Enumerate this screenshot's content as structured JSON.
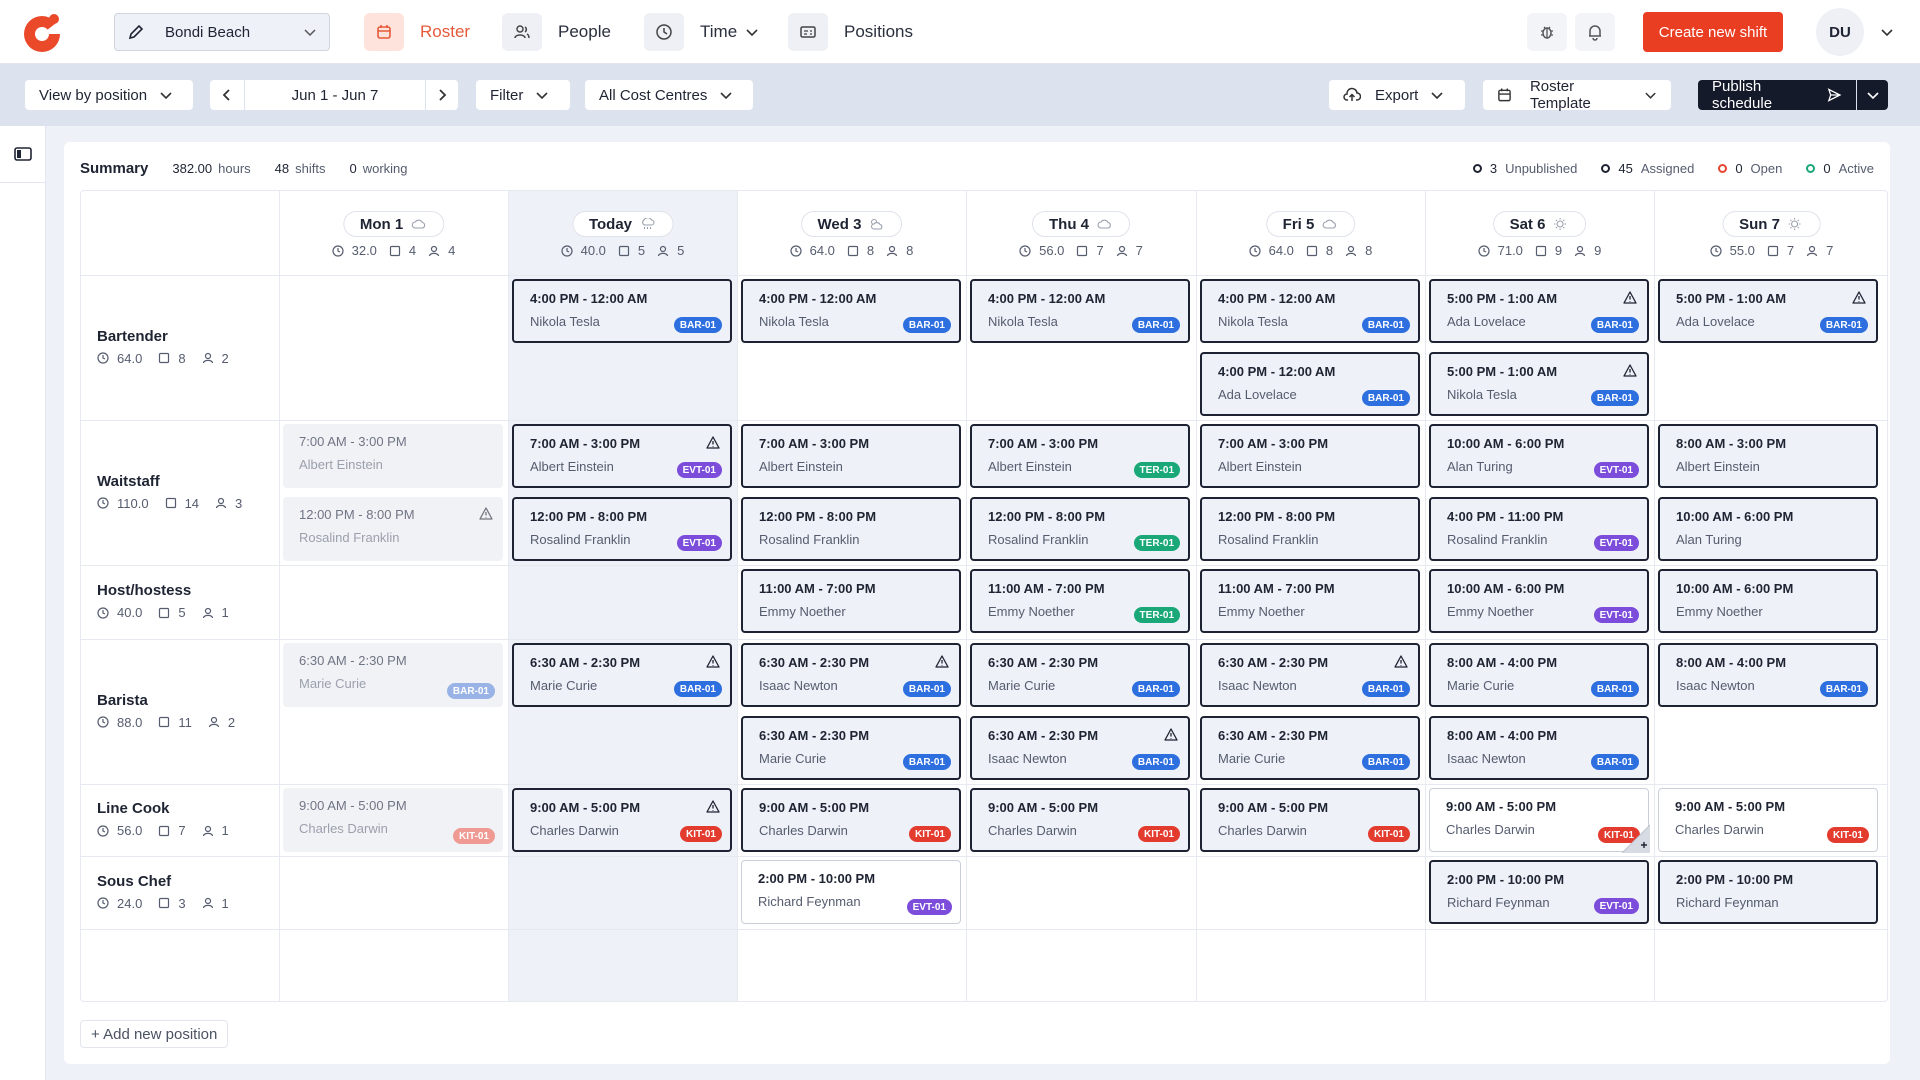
{
  "nav": {
    "location": "Bondi Beach",
    "roster": "Roster",
    "people": "People",
    "time": "Time",
    "positions": "Positions",
    "create_shift": "Create new shift",
    "user_initials": "DU"
  },
  "toolbar": {
    "view_by": "View by position",
    "date_range": "Jun 1 - Jun 7",
    "filter": "Filter",
    "cost_centres": "All Cost Centres",
    "export": "Export",
    "roster_template": "Roster Template",
    "publish": "Publish schedule"
  },
  "summary": {
    "title": "Summary",
    "hours": "382.00",
    "hours_unit": "hours",
    "shifts": "48",
    "shifts_unit": "shifts",
    "working": "0",
    "working_unit": "working"
  },
  "legend": [
    {
      "count": "3",
      "label": "Unpublished",
      "color": "#1f2433"
    },
    {
      "count": "45",
      "label": "Assigned",
      "color": "#1f2433"
    },
    {
      "count": "0",
      "label": "Open",
      "color": "#e8452e"
    },
    {
      "count": "0",
      "label": "Active",
      "color": "#1aa878"
    }
  ],
  "days": [
    {
      "label": "Mon 1",
      "hours": "32.0",
      "shifts": "4",
      "people": "4",
      "weather": "cloud-icon"
    },
    {
      "label": "Today",
      "hours": "40.0",
      "shifts": "5",
      "people": "5",
      "weather": "rain-icon"
    },
    {
      "label": "Wed 3",
      "hours": "64.0",
      "shifts": "8",
      "people": "8",
      "weather": "partly-cloudy-icon"
    },
    {
      "label": "Thu 4",
      "hours": "56.0",
      "shifts": "7",
      "people": "7",
      "weather": "cloud-icon"
    },
    {
      "label": "Fri 5",
      "hours": "64.0",
      "shifts": "8",
      "people": "8",
      "weather": "cloud-icon"
    },
    {
      "label": "Sat 6",
      "hours": "71.0",
      "shifts": "9",
      "people": "9",
      "weather": "sun-icon"
    },
    {
      "label": "Sun 7",
      "hours": "55.0",
      "shifts": "7",
      "people": "7",
      "weather": "sun-icon"
    }
  ],
  "positions": [
    {
      "name": "Bartender",
      "hours": "64.0",
      "shifts": "8",
      "people": "2",
      "shifts_list": [
        {
          "day": 1,
          "slot": 0,
          "time": "4:00 PM - 12:00 AM",
          "name": "Nikola Tesla",
          "tag": "BAR-01",
          "tagType": "bar"
        },
        {
          "day": 2,
          "slot": 0,
          "time": "4:00 PM - 12:00 AM",
          "name": "Nikola Tesla",
          "tag": "BAR-01",
          "tagType": "bar"
        },
        {
          "day": 3,
          "slot": 0,
          "time": "4:00 PM - 12:00 AM",
          "name": "Nikola Tesla",
          "tag": "BAR-01",
          "tagType": "bar"
        },
        {
          "day": 4,
          "slot": 0,
          "time": "4:00 PM - 12:00 AM",
          "name": "Nikola Tesla",
          "tag": "BAR-01",
          "tagType": "bar"
        },
        {
          "day": 4,
          "slot": 1,
          "time": "4:00 PM - 12:00 AM",
          "name": "Ada Lovelace",
          "tag": "BAR-01",
          "tagType": "bar"
        },
        {
          "day": 5,
          "slot": 0,
          "time": "5:00 PM - 1:00 AM",
          "name": "Ada Lovelace",
          "tag": "BAR-01",
          "tagType": "bar",
          "warn": true
        },
        {
          "day": 5,
          "slot": 1,
          "time": "5:00 PM - 1:00 AM",
          "name": "Nikola Tesla",
          "tag": "BAR-01",
          "tagType": "bar",
          "warn": true
        },
        {
          "day": 6,
          "slot": 0,
          "time": "5:00 PM - 1:00 AM",
          "name": "Ada Lovelace",
          "tag": "BAR-01",
          "tagType": "bar",
          "warn": true
        }
      ]
    },
    {
      "name": "Waitstaff",
      "hours": "110.0",
      "shifts": "14",
      "people": "3",
      "shifts_list": [
        {
          "day": 0,
          "slot": 0,
          "time": "7:00 AM - 3:00 PM",
          "name": "Albert Einstein",
          "past": true
        },
        {
          "day": 0,
          "slot": 1,
          "time": "12:00 PM - 8:00 PM",
          "name": "Rosalind Franklin",
          "past": true,
          "warn": true
        },
        {
          "day": 1,
          "slot": 0,
          "time": "7:00 AM - 3:00 PM",
          "name": "Albert Einstein",
          "tag": "EVT-01",
          "tagType": "evt",
          "warn": true
        },
        {
          "day": 1,
          "slot": 1,
          "time": "12:00 PM - 8:00 PM",
          "name": "Rosalind Franklin",
          "tag": "EVT-01",
          "tagType": "evt"
        },
        {
          "day": 2,
          "slot": 0,
          "time": "7:00 AM - 3:00 PM",
          "name": "Albert Einstein"
        },
        {
          "day": 2,
          "slot": 1,
          "time": "12:00 PM - 8:00 PM",
          "name": "Rosalind Franklin"
        },
        {
          "day": 3,
          "slot": 0,
          "time": "7:00 AM - 3:00 PM",
          "name": "Albert Einstein",
          "tag": "TER-01",
          "tagType": "ter"
        },
        {
          "day": 3,
          "slot": 1,
          "time": "12:00 PM - 8:00 PM",
          "name": "Rosalind Franklin",
          "tag": "TER-01",
          "tagType": "ter"
        },
        {
          "day": 4,
          "slot": 0,
          "time": "7:00 AM - 3:00 PM",
          "name": "Albert Einstein"
        },
        {
          "day": 4,
          "slot": 1,
          "time": "12:00 PM - 8:00 PM",
          "name": "Rosalind Franklin"
        },
        {
          "day": 5,
          "slot": 0,
          "time": "10:00 AM - 6:00 PM",
          "name": "Alan Turing",
          "tag": "EVT-01",
          "tagType": "evt"
        },
        {
          "day": 5,
          "slot": 1,
          "time": "4:00 PM - 11:00 PM",
          "name": "Rosalind Franklin",
          "tag": "EVT-01",
          "tagType": "evt"
        },
        {
          "day": 6,
          "slot": 0,
          "time": "8:00 AM - 3:00 PM",
          "name": "Albert Einstein"
        },
        {
          "day": 6,
          "slot": 1,
          "time": "10:00 AM - 6:00 PM",
          "name": "Alan Turing"
        }
      ]
    },
    {
      "name": "Host/hostess",
      "hours": "40.0",
      "shifts": "5",
      "people": "1",
      "shifts_list": [
        {
          "day": 2,
          "slot": 0,
          "time": "11:00 AM - 7:00 PM",
          "name": "Emmy Noether"
        },
        {
          "day": 3,
          "slot": 0,
          "time": "11:00 AM - 7:00 PM",
          "name": "Emmy Noether",
          "tag": "TER-01",
          "tagType": "ter"
        },
        {
          "day": 4,
          "slot": 0,
          "time": "11:00 AM - 7:00 PM",
          "name": "Emmy Noether"
        },
        {
          "day": 5,
          "slot": 0,
          "time": "10:00 AM - 6:00 PM",
          "name": "Emmy Noether",
          "tag": "EVT-01",
          "tagType": "evt"
        },
        {
          "day": 6,
          "slot": 0,
          "time": "10:00 AM - 6:00 PM",
          "name": "Emmy Noether"
        }
      ]
    },
    {
      "name": "Barista",
      "hours": "88.0",
      "shifts": "11",
      "people": "2",
      "shifts_list": [
        {
          "day": 0,
          "slot": 0,
          "time": "6:30 AM - 2:30 PM",
          "name": "Marie Curie",
          "tag": "BAR-01",
          "tagType": "bar",
          "past": true
        },
        {
          "day": 1,
          "slot": 0,
          "time": "6:30 AM - 2:30 PM",
          "name": "Marie Curie",
          "tag": "BAR-01",
          "tagType": "bar",
          "warn": true
        },
        {
          "day": 2,
          "slot": 0,
          "time": "6:30 AM - 2:30 PM",
          "name": "Isaac Newton",
          "tag": "BAR-01",
          "tagType": "bar",
          "warn": true
        },
        {
          "day": 2,
          "slot": 1,
          "time": "6:30 AM - 2:30 PM",
          "name": "Marie Curie",
          "tag": "BAR-01",
          "tagType": "bar"
        },
        {
          "day": 3,
          "slot": 0,
          "time": "6:30 AM - 2:30 PM",
          "name": "Marie Curie",
          "tag": "BAR-01",
          "tagType": "bar"
        },
        {
          "day": 3,
          "slot": 1,
          "time": "6:30 AM - 2:30 PM",
          "name": "Isaac Newton",
          "tag": "BAR-01",
          "tagType": "bar",
          "warn": true
        },
        {
          "day": 4,
          "slot": 0,
          "time": "6:30 AM - 2:30 PM",
          "name": "Isaac Newton",
          "tag": "BAR-01",
          "tagType": "bar",
          "warn": true
        },
        {
          "day": 4,
          "slot": 1,
          "time": "6:30 AM - 2:30 PM",
          "name": "Marie Curie",
          "tag": "BAR-01",
          "tagType": "bar"
        },
        {
          "day": 5,
          "slot": 0,
          "time": "8:00 AM - 4:00 PM",
          "name": "Marie Curie",
          "tag": "BAR-01",
          "tagType": "bar"
        },
        {
          "day": 5,
          "slot": 1,
          "time": "8:00 AM - 4:00 PM",
          "name": "Isaac Newton",
          "tag": "BAR-01",
          "tagType": "bar"
        },
        {
          "day": 6,
          "slot": 0,
          "time": "8:00 AM - 4:00 PM",
          "name": "Isaac Newton",
          "tag": "BAR-01",
          "tagType": "bar"
        }
      ]
    },
    {
      "name": "Line Cook",
      "hours": "56.0",
      "shifts": "7",
      "people": "1",
      "shifts_list": [
        {
          "day": 0,
          "slot": 0,
          "time": "9:00 AM - 5:00 PM",
          "name": "Charles Darwin",
          "tag": "KIT-01",
          "tagType": "kit",
          "past": true
        },
        {
          "day": 1,
          "slot": 0,
          "time": "9:00 AM - 5:00 PM",
          "name": "Charles Darwin",
          "tag": "KIT-01",
          "tagType": "kit",
          "warn": true
        },
        {
          "day": 2,
          "slot": 0,
          "time": "9:00 AM - 5:00 PM",
          "name": "Charles Darwin",
          "tag": "KIT-01",
          "tagType": "kit"
        },
        {
          "day": 3,
          "slot": 0,
          "time": "9:00 AM - 5:00 PM",
          "name": "Charles Darwin",
          "tag": "KIT-01",
          "tagType": "kit"
        },
        {
          "day": 4,
          "slot": 0,
          "time": "9:00 AM - 5:00 PM",
          "name": "Charles Darwin",
          "tag": "KIT-01",
          "tagType": "kit"
        },
        {
          "day": 5,
          "slot": 0,
          "time": "9:00 AM - 5:00 PM",
          "name": "Charles Darwin",
          "tag": "KIT-01",
          "tagType": "kit",
          "white": true,
          "fold": true
        },
        {
          "day": 6,
          "slot": 0,
          "time": "9:00 AM - 5:00 PM",
          "name": "Charles Darwin",
          "tag": "KIT-01",
          "tagType": "kit",
          "white": true
        }
      ]
    },
    {
      "name": "Sous Chef",
      "hours": "24.0",
      "shifts": "3",
      "people": "1",
      "shifts_list": [
        {
          "day": 2,
          "slot": 0,
          "time": "2:00 PM - 10:00 PM",
          "name": "Richard Feynman",
          "tag": "EVT-01",
          "tagType": "evt",
          "white": true
        },
        {
          "day": 5,
          "slot": 0,
          "time": "2:00 PM - 10:00 PM",
          "name": "Richard Feynman",
          "tag": "EVT-01",
          "tagType": "evt"
        },
        {
          "day": 6,
          "slot": 0,
          "time": "2:00 PM - 10:00 PM",
          "name": "Richard Feynman"
        }
      ]
    }
  ],
  "add_position": "+ Add new position"
}
